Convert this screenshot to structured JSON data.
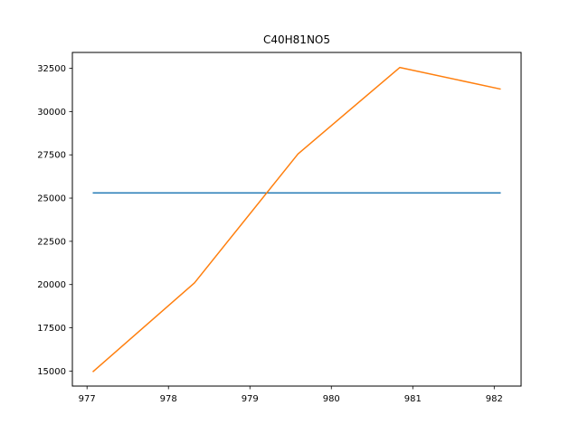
{
  "chart_data": {
    "type": "line",
    "title": "C40H81NO5",
    "xlabel": "",
    "ylabel": "",
    "xlim": [
      976.82,
      982.33
    ],
    "ylim": [
      14130,
      33420
    ],
    "xticks": [
      977,
      978,
      979,
      980,
      981,
      982
    ],
    "yticks": [
      15000,
      17500,
      20000,
      22500,
      25000,
      27500,
      30000,
      32500
    ],
    "grid": false,
    "series": [
      {
        "color": "#1f77b4",
        "x": [
          977.07,
          982.08
        ],
        "y": [
          25300,
          25300
        ]
      },
      {
        "color": "#ff7f0e",
        "x": [
          977.07,
          978.32,
          979.59,
          980.84,
          982.08
        ],
        "y": [
          14950,
          20100,
          27550,
          32550,
          31300
        ]
      }
    ]
  }
}
